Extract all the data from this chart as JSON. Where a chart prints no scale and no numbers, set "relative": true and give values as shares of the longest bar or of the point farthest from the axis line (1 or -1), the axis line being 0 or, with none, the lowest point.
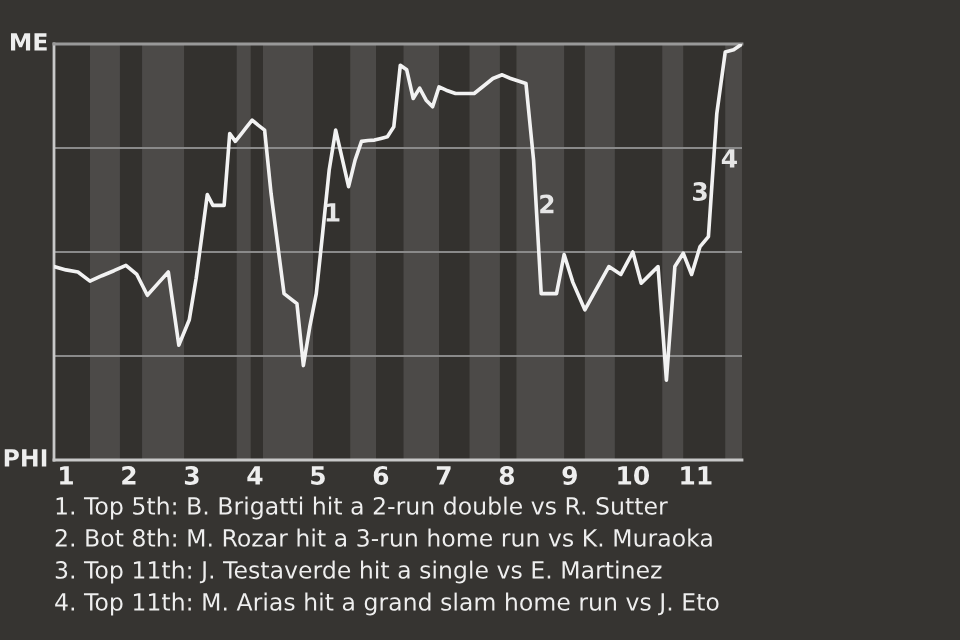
{
  "chart_data": {
    "type": "line",
    "relative": true,
    "xlim": [
      0.81,
      11.733
    ],
    "xticks": [
      1,
      2,
      3,
      4,
      5,
      6,
      7,
      8,
      9,
      10,
      11
    ],
    "series": [
      {
        "color": "#f2f2f2",
        "x": [
          0.81,
          1.0,
          1.19,
          1.381,
          1.571,
          1.762,
          1.952,
          2.125,
          2.292,
          2.458,
          2.625,
          2.792,
          2.958,
          3.067,
          3.156,
          3.244,
          3.333,
          3.422,
          3.511,
          3.6,
          3.689,
          3.778,
          3.867,
          3.956,
          4.051,
          4.154,
          4.256,
          4.359,
          4.462,
          4.564,
          4.667,
          4.769,
          4.872,
          4.974,
          5.077,
          5.179,
          5.282,
          5.385,
          5.487,
          5.59,
          5.692,
          5.795,
          5.897,
          6.0,
          6.103,
          6.205,
          6.308,
          6.41,
          6.513,
          6.615,
          6.718,
          6.821,
          6.923,
          7.037,
          7.185,
          7.333,
          7.481,
          7.63,
          7.778,
          7.926,
          8.061,
          8.182,
          8.303,
          8.424,
          8.545,
          8.667,
          8.788,
          8.909,
          9.048,
          9.238,
          9.429,
          9.619,
          9.81,
          10.0,
          10.133,
          10.267,
          10.4,
          10.533,
          10.667,
          10.8,
          10.933,
          11.067,
          11.2,
          11.333,
          11.467,
          11.6,
          11.733
        ],
        "values": [
          0.465,
          0.457,
          0.452,
          0.43,
          0.443,
          0.455,
          0.468,
          0.446,
          0.396,
          0.424,
          0.452,
          0.276,
          0.337,
          0.437,
          0.537,
          0.638,
          0.612,
          0.612,
          0.612,
          0.785,
          0.766,
          0.783,
          0.8,
          0.817,
          0.805,
          0.793,
          0.641,
          0.52,
          0.4,
          0.388,
          0.376,
          0.227,
          0.321,
          0.4,
          0.548,
          0.697,
          0.793,
          0.725,
          0.657,
          0.721,
          0.766,
          0.768,
          0.769,
          0.773,
          0.777,
          0.801,
          0.949,
          0.938,
          0.869,
          0.894,
          0.865,
          0.849,
          0.897,
          0.889,
          0.881,
          0.881,
          0.881,
          0.899,
          0.917,
          0.926,
          0.917,
          0.911,
          0.905,
          0.721,
          0.4,
          0.4,
          0.4,
          0.494,
          0.427,
          0.361,
          0.413,
          0.465,
          0.446,
          0.5,
          0.425,
          0.445,
          0.465,
          0.192,
          0.465,
          0.497,
          0.446,
          0.513,
          0.537,
          0.833,
          0.981,
          0.986,
          1.0
        ]
      }
    ],
    "ref_lines": [
      {
        "axis": "y",
        "value": 0.25,
        "color": "#8a8a8a"
      },
      {
        "axis": "y",
        "value": 0.5,
        "color": "#8a8a8a"
      },
      {
        "axis": "y",
        "value": 0.75,
        "color": "#8a8a8a"
      }
    ],
    "bands": [
      {
        "axis": "x",
        "from": 1.381,
        "to": 1.857,
        "color": "#4c4a48"
      },
      {
        "axis": "x",
        "from": 2.208,
        "to": 2.875,
        "color": "#4c4a48"
      },
      {
        "axis": "x",
        "from": 3.711,
        "to": 3.933,
        "color": "#4c4a48"
      },
      {
        "axis": "x",
        "from": 4.128,
        "to": 4.923,
        "color": "#4c4a48"
      },
      {
        "axis": "x",
        "from": 5.513,
        "to": 5.923,
        "color": "#4c4a48"
      },
      {
        "axis": "x",
        "from": 6.359,
        "to": 6.923,
        "color": "#4c4a48"
      },
      {
        "axis": "x",
        "from": 7.407,
        "to": 7.889,
        "color": "#4c4a48"
      },
      {
        "axis": "x",
        "from": 8.152,
        "to": 8.909,
        "color": "#4c4a48"
      },
      {
        "axis": "x",
        "from": 9.238,
        "to": 9.714,
        "color": "#4c4a48"
      },
      {
        "axis": "x",
        "from": 10.467,
        "to": 10.8,
        "color": "#4c4a48"
      },
      {
        "axis": "x",
        "from": 11.467,
        "to": 11.733,
        "color": "#4c4a48"
      }
    ],
    "annotations": [
      "ME",
      "PHI",
      "1. Top 5th: B. Brigatti hit a 2-run double vs R. Sutter",
      "2. Bot 8th: M. Rozar hit a 3-run home run vs K. Muraoka",
      "3. Top 11th: J. Testaverde hit a single vs E. Martinez",
      "4. Top 11th: M. Arias hit a grand slam home run vs J. Eto",
      {
        "text": "1",
        "x": 5.231,
        "y": 0.59
      },
      {
        "text": "2",
        "x": 8.636,
        "y": 0.61
      },
      {
        "text": "3",
        "x": 11.067,
        "y": 0.64
      },
      {
        "text": "4",
        "x": 11.533,
        "y": 0.72
      }
    ]
  }
}
